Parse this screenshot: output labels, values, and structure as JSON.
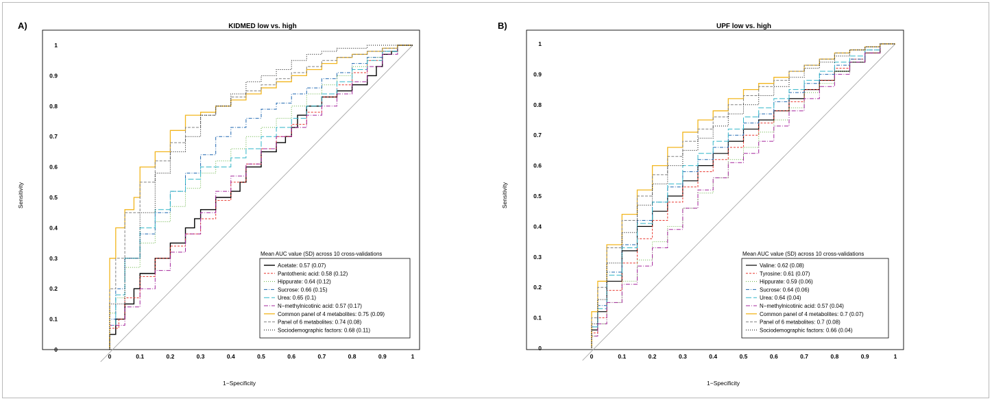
{
  "chart_data": [
    {
      "type": "line",
      "panel_label": "A)",
      "title": "KIDMED low vs. high",
      "xlabel": "1−Specificity",
      "ylabel": "Sensitivity",
      "xlim": [
        0,
        1
      ],
      "ylim": [
        0,
        1
      ],
      "x_ticks": [
        "0",
        "0.1",
        "0.2",
        "0.3",
        "0.4",
        "0.5",
        "0.6",
        "0.7",
        "0.8",
        "0.9",
        "1"
      ],
      "y_ticks": [
        "0",
        "0.1",
        "0.2",
        "0.3",
        "0.4",
        "0.5",
        "0.6",
        "0.7",
        "0.8",
        "0.9",
        "1"
      ],
      "reference_line": "diagonal",
      "legend_title": "Mean AUC value (SD) across 10 cross-validations",
      "legend_position": "bottom-right",
      "series": [
        {
          "name": "Acetate: 0.57 (0.07)",
          "color": "#000000",
          "dash": "",
          "width": 1.4,
          "x": [
            0,
            0.02,
            0.05,
            0.08,
            0.1,
            0.15,
            0.2,
            0.25,
            0.28,
            0.3,
            0.35,
            0.4,
            0.43,
            0.45,
            0.5,
            0.55,
            0.58,
            0.6,
            0.62,
            0.65,
            0.7,
            0.75,
            0.8,
            0.85,
            0.88,
            0.9,
            0.93,
            0.95,
            0.97,
            1
          ],
          "y": [
            0,
            0.05,
            0.1,
            0.15,
            0.2,
            0.25,
            0.3,
            0.35,
            0.4,
            0.43,
            0.46,
            0.5,
            0.52,
            0.55,
            0.6,
            0.65,
            0.68,
            0.7,
            0.73,
            0.77,
            0.8,
            0.83,
            0.85,
            0.87,
            0.9,
            0.93,
            0.97,
            0.98,
            1,
            1
          ]
        },
        {
          "name": "Pantothenic acid: 0.58 (0.12)",
          "color": "#e8342c",
          "dash": "3,2",
          "width": 1,
          "x": [
            0,
            0.03,
            0.05,
            0.1,
            0.15,
            0.2,
            0.25,
            0.3,
            0.35,
            0.4,
            0.45,
            0.5,
            0.55,
            0.6,
            0.65,
            0.7,
            0.75,
            0.8,
            0.85,
            0.9,
            0.95,
            1
          ],
          "y": [
            0,
            0.07,
            0.1,
            0.17,
            0.24,
            0.3,
            0.34,
            0.38,
            0.43,
            0.49,
            0.55,
            0.61,
            0.66,
            0.7,
            0.74,
            0.78,
            0.83,
            0.87,
            0.91,
            0.95,
            0.98,
            1
          ]
        },
        {
          "name": "Hippurate: 0.64 (0.12)",
          "color": "#5fae3b",
          "dash": "1,2",
          "width": 1,
          "x": [
            0,
            0.02,
            0.05,
            0.1,
            0.15,
            0.2,
            0.25,
            0.3,
            0.35,
            0.4,
            0.45,
            0.5,
            0.55,
            0.6,
            0.65,
            0.7,
            0.75,
            0.8,
            0.85,
            0.9,
            0.95,
            1
          ],
          "y": [
            0,
            0.12,
            0.17,
            0.27,
            0.35,
            0.42,
            0.47,
            0.53,
            0.58,
            0.62,
            0.66,
            0.7,
            0.73,
            0.76,
            0.8,
            0.84,
            0.87,
            0.9,
            0.93,
            0.96,
            0.98,
            1
          ]
        },
        {
          "name": "Sucrose: 0.66 (0.15)",
          "color": "#1f67b0",
          "dash": "5,2,1,2",
          "width": 1,
          "x": [
            0,
            0.02,
            0.05,
            0.1,
            0.15,
            0.2,
            0.25,
            0.3,
            0.35,
            0.4,
            0.45,
            0.5,
            0.55,
            0.6,
            0.65,
            0.7,
            0.75,
            0.8,
            0.85,
            0.9,
            0.95,
            1
          ],
          "y": [
            0,
            0.1,
            0.2,
            0.3,
            0.38,
            0.45,
            0.52,
            0.58,
            0.64,
            0.7,
            0.73,
            0.76,
            0.79,
            0.81,
            0.84,
            0.86,
            0.89,
            0.91,
            0.94,
            0.96,
            0.98,
            1
          ]
        },
        {
          "name": "Urea: 0.65 (0.1)",
          "color": "#2fb5c8",
          "dash": "8,3",
          "width": 1,
          "x": [
            0,
            0.02,
            0.05,
            0.1,
            0.15,
            0.2,
            0.25,
            0.3,
            0.35,
            0.4,
            0.45,
            0.5,
            0.55,
            0.6,
            0.65,
            0.7,
            0.75,
            0.8,
            0.85,
            0.9,
            0.95,
            1
          ],
          "y": [
            0,
            0.08,
            0.18,
            0.3,
            0.4,
            0.46,
            0.52,
            0.56,
            0.6,
            0.6,
            0.63,
            0.66,
            0.7,
            0.73,
            0.76,
            0.8,
            0.84,
            0.88,
            0.92,
            0.95,
            0.98,
            1
          ]
        },
        {
          "name": "N−methylnicotinic acid: 0.57 (0.17)",
          "color": "#a3249b",
          "dash": "6,2,1,2",
          "width": 1,
          "x": [
            0,
            0.05,
            0.1,
            0.15,
            0.2,
            0.25,
            0.3,
            0.35,
            0.4,
            0.45,
            0.5,
            0.55,
            0.6,
            0.65,
            0.7,
            0.75,
            0.8,
            0.85,
            0.9,
            0.95,
            1
          ],
          "y": [
            0,
            0.08,
            0.14,
            0.2,
            0.26,
            0.32,
            0.38,
            0.45,
            0.52,
            0.57,
            0.61,
            0.66,
            0.7,
            0.73,
            0.77,
            0.8,
            0.84,
            0.88,
            0.93,
            0.97,
            1
          ]
        },
        {
          "name": "Common panel of 4 metabolites: 0.75 (0.09)",
          "color": "#f2b51c",
          "dash": "",
          "width": 1.3,
          "x": [
            0,
            0.02,
            0.05,
            0.08,
            0.1,
            0.15,
            0.2,
            0.25,
            0.3,
            0.35,
            0.4,
            0.45,
            0.5,
            0.55,
            0.6,
            0.65,
            0.7,
            0.75,
            0.8,
            0.85,
            0.9,
            0.95,
            1
          ],
          "y": [
            0,
            0.3,
            0.4,
            0.46,
            0.5,
            0.6,
            0.65,
            0.72,
            0.77,
            0.78,
            0.8,
            0.82,
            0.84,
            0.86,
            0.88,
            0.9,
            0.92,
            0.94,
            0.96,
            0.97,
            0.98,
            0.99,
            1
          ]
        },
        {
          "name": "Panel of 6 metabolites: 0.74 (0.08)",
          "color": "#808080",
          "dash": "4,2",
          "width": 1,
          "x": [
            0,
            0.02,
            0.05,
            0.1,
            0.15,
            0.2,
            0.25,
            0.3,
            0.35,
            0.4,
            0.45,
            0.5,
            0.55,
            0.6,
            0.65,
            0.7,
            0.75,
            0.8,
            0.85,
            0.9,
            0.95,
            1
          ],
          "y": [
            0,
            0.2,
            0.3,
            0.45,
            0.55,
            0.62,
            0.68,
            0.73,
            0.77,
            0.8,
            0.83,
            0.85,
            0.87,
            0.89,
            0.91,
            0.93,
            0.95,
            0.96,
            0.97,
            0.98,
            0.99,
            1
          ]
        },
        {
          "name": "Sociodemographic factors: 0.68 (0.11)",
          "color": "#000000",
          "dash": "1,2",
          "width": 1,
          "x": [
            0,
            0.05,
            0.1,
            0.15,
            0.2,
            0.25,
            0.3,
            0.35,
            0.4,
            0.45,
            0.5,
            0.55,
            0.6,
            0.65,
            0.7,
            0.75,
            0.8,
            0.85,
            0.9,
            0.95,
            1
          ],
          "y": [
            0,
            0.15,
            0.3,
            0.45,
            0.58,
            0.65,
            0.7,
            0.77,
            0.8,
            0.84,
            0.88,
            0.9,
            0.92,
            0.95,
            0.97,
            0.98,
            0.99,
            0.99,
            1,
            1,
            1
          ]
        }
      ]
    },
    {
      "type": "line",
      "panel_label": "B)",
      "title": "UPF low vs. high",
      "xlabel": "1−Specificity",
      "ylabel": "Sensitivity",
      "xlim": [
        0,
        1
      ],
      "ylim": [
        0,
        1
      ],
      "x_ticks": [
        "0",
        "0.1",
        "0.2",
        "0.3",
        "0.4",
        "0.5",
        "0.6",
        "0.7",
        "0.8",
        "0.9",
        "1"
      ],
      "y_ticks": [
        "0",
        "0.1",
        "0.2",
        "0.3",
        "0.4",
        "0.5",
        "0.6",
        "0.7",
        "0.8",
        "0.9",
        "1"
      ],
      "reference_line": "diagonal",
      "legend_title": "Mean AUC value (SD) across 10 cross-validations",
      "legend_position": "bottom-right",
      "series": [
        {
          "name": "Valine: 0.62 (0.08)",
          "color": "#000000",
          "dash": "",
          "width": 1.2,
          "x": [
            0,
            0.02,
            0.05,
            0.1,
            0.15,
            0.2,
            0.25,
            0.3,
            0.35,
            0.4,
            0.45,
            0.5,
            0.55,
            0.6,
            0.65,
            0.7,
            0.75,
            0.8,
            0.85,
            0.9,
            0.95,
            1
          ],
          "y": [
            0,
            0.06,
            0.12,
            0.22,
            0.32,
            0.4,
            0.45,
            0.5,
            0.55,
            0.6,
            0.64,
            0.68,
            0.72,
            0.75,
            0.78,
            0.82,
            0.85,
            0.88,
            0.91,
            0.94,
            0.97,
            1
          ]
        },
        {
          "name": "Tyrosine: 0.61 (0.07)",
          "color": "#e8342c",
          "dash": "3,2",
          "width": 1,
          "x": [
            0,
            0.02,
            0.05,
            0.1,
            0.15,
            0.2,
            0.25,
            0.3,
            0.35,
            0.4,
            0.45,
            0.5,
            0.55,
            0.6,
            0.65,
            0.7,
            0.75,
            0.8,
            0.85,
            0.9,
            0.95,
            1
          ],
          "y": [
            0,
            0.05,
            0.1,
            0.19,
            0.28,
            0.36,
            0.42,
            0.48,
            0.53,
            0.58,
            0.62,
            0.66,
            0.7,
            0.74,
            0.78,
            0.81,
            0.85,
            0.88,
            0.92,
            0.95,
            0.97,
            1
          ]
        },
        {
          "name": "Hippurate: 0.59 (0.06)",
          "color": "#5fae3b",
          "dash": "1,2",
          "width": 1,
          "x": [
            0,
            0.02,
            0.05,
            0.1,
            0.15,
            0.2,
            0.25,
            0.3,
            0.35,
            0.4,
            0.45,
            0.5,
            0.55,
            0.6,
            0.65,
            0.7,
            0.75,
            0.8,
            0.85,
            0.9,
            0.95,
            1
          ],
          "y": [
            0,
            0.04,
            0.08,
            0.15,
            0.22,
            0.29,
            0.35,
            0.4,
            0.46,
            0.51,
            0.56,
            0.62,
            0.66,
            0.71,
            0.75,
            0.79,
            0.84,
            0.87,
            0.91,
            0.94,
            0.97,
            1
          ]
        },
        {
          "name": "Sucrose: 0.64 (0.06)",
          "color": "#1f67b0",
          "dash": "5,2,1,2",
          "width": 1,
          "x": [
            0,
            0.02,
            0.05,
            0.1,
            0.15,
            0.2,
            0.25,
            0.3,
            0.35,
            0.4,
            0.45,
            0.5,
            0.55,
            0.6,
            0.65,
            0.7,
            0.75,
            0.8,
            0.85,
            0.9,
            0.95,
            1
          ],
          "y": [
            0,
            0.07,
            0.14,
            0.25,
            0.34,
            0.42,
            0.48,
            0.53,
            0.58,
            0.62,
            0.66,
            0.7,
            0.74,
            0.77,
            0.81,
            0.84,
            0.87,
            0.9,
            0.93,
            0.95,
            0.98,
            1
          ]
        },
        {
          "name": "Urea: 0.64 (0.04)",
          "color": "#2fb5c8",
          "dash": "8,3",
          "width": 1,
          "x": [
            0,
            0.02,
            0.05,
            0.1,
            0.15,
            0.2,
            0.25,
            0.3,
            0.35,
            0.4,
            0.45,
            0.5,
            0.55,
            0.6,
            0.65,
            0.7,
            0.75,
            0.8,
            0.85,
            0.9,
            0.95,
            1
          ],
          "y": [
            0,
            0.07,
            0.13,
            0.24,
            0.33,
            0.41,
            0.48,
            0.54,
            0.6,
            0.64,
            0.68,
            0.72,
            0.76,
            0.79,
            0.82,
            0.85,
            0.88,
            0.91,
            0.94,
            0.96,
            0.98,
            1
          ]
        },
        {
          "name": "N−methylnicotinic acid: 0.57 (0.04)",
          "color": "#a3249b",
          "dash": "6,2,1,2",
          "width": 1,
          "x": [
            0,
            0.02,
            0.05,
            0.1,
            0.15,
            0.2,
            0.25,
            0.3,
            0.35,
            0.4,
            0.45,
            0.5,
            0.55,
            0.6,
            0.65,
            0.7,
            0.75,
            0.8,
            0.85,
            0.9,
            0.95,
            1
          ],
          "y": [
            0,
            0.04,
            0.08,
            0.15,
            0.21,
            0.27,
            0.33,
            0.39,
            0.46,
            0.52,
            0.56,
            0.61,
            0.64,
            0.68,
            0.73,
            0.78,
            0.82,
            0.86,
            0.9,
            0.94,
            0.97,
            1
          ]
        },
        {
          "name": "Common panel of 4 metabolites: 0.7 (0.07)",
          "color": "#f2b51c",
          "dash": "",
          "width": 1.3,
          "x": [
            0,
            0.02,
            0.05,
            0.1,
            0.15,
            0.2,
            0.25,
            0.3,
            0.35,
            0.4,
            0.45,
            0.5,
            0.55,
            0.6,
            0.65,
            0.7,
            0.75,
            0.8,
            0.85,
            0.9,
            0.95,
            1
          ],
          "y": [
            0,
            0.12,
            0.22,
            0.34,
            0.44,
            0.52,
            0.6,
            0.66,
            0.71,
            0.75,
            0.78,
            0.82,
            0.85,
            0.87,
            0.89,
            0.91,
            0.93,
            0.95,
            0.97,
            0.98,
            0.99,
            1
          ]
        },
        {
          "name": "Panel of 6 metabolites: 0.7 (0.08)",
          "color": "#808080",
          "dash": "4,2",
          "width": 1,
          "x": [
            0,
            0.02,
            0.05,
            0.1,
            0.15,
            0.2,
            0.25,
            0.3,
            0.35,
            0.4,
            0.45,
            0.5,
            0.55,
            0.6,
            0.65,
            0.7,
            0.75,
            0.8,
            0.85,
            0.9,
            0.95,
            1
          ],
          "y": [
            0,
            0.1,
            0.2,
            0.33,
            0.42,
            0.5,
            0.57,
            0.63,
            0.68,
            0.72,
            0.76,
            0.8,
            0.83,
            0.86,
            0.88,
            0.91,
            0.93,
            0.95,
            0.97,
            0.98,
            0.99,
            1
          ]
        },
        {
          "name": "Sociodemographic factors: 0.66 (0.04)",
          "color": "#000000",
          "dash": "1,2",
          "width": 1,
          "x": [
            0,
            0.02,
            0.05,
            0.1,
            0.15,
            0.2,
            0.25,
            0.3,
            0.35,
            0.4,
            0.45,
            0.5,
            0.55,
            0.6,
            0.65,
            0.7,
            0.75,
            0.8,
            0.85,
            0.9,
            0.95,
            1
          ],
          "y": [
            0,
            0.08,
            0.16,
            0.28,
            0.38,
            0.47,
            0.54,
            0.6,
            0.65,
            0.69,
            0.73,
            0.77,
            0.8,
            0.83,
            0.86,
            0.89,
            0.92,
            0.94,
            0.96,
            0.98,
            0.99,
            1
          ]
        }
      ]
    }
  ]
}
